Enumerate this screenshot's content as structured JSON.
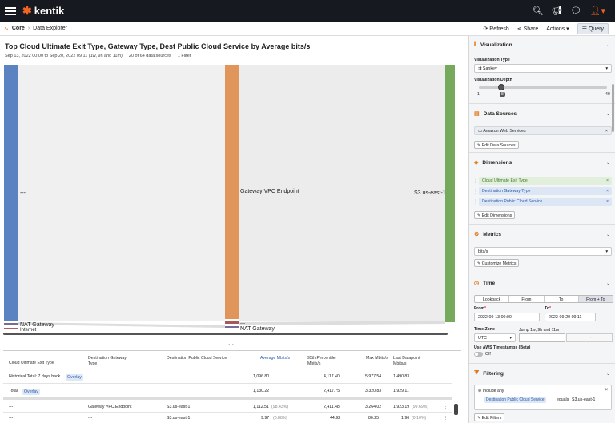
{
  "app": {
    "name": "kentik"
  },
  "breadcrumb": {
    "root": "Core",
    "page": "Data Explorer"
  },
  "actions": {
    "refresh": "Refresh",
    "share": "Share",
    "actions": "Actions",
    "query": "Query"
  },
  "chart": {
    "title": "Top Cloud Ultimate Exit Type, Gateway Type, Dest Public Cloud Service by Average bits/s",
    "range": "Sep 13, 2022 00:00 to Sep 20, 2022 09:11 (1w, 9h and 11m)",
    "sources": "20 of 64 data sources",
    "filters": "1 Filter",
    "nodes": {
      "col1_main": "---",
      "col1_a": "NAT Gateway",
      "col1_b": "Internet",
      "col2_main": "Gateway VPC Endpoint",
      "col2_a": "---",
      "col2_b": "NAT Gateway",
      "col3_main": "S3.us-east-1"
    }
  },
  "table": {
    "headers": [
      "Cloud Ultimate Exit Type",
      "Destination Gateway Type",
      "Destination Public Cloud Service",
      "Average Mbits/s",
      "95th Percentile Mbits/s",
      "Max Mbits/s",
      "Last Datapoint Mbits/s"
    ],
    "rows": [
      {
        "c1": "Historical Total: 7 days back",
        "tag": "Overlay",
        "avg": "1,096.80",
        "p95": "4,117.40",
        "max": "5,977.54",
        "last": "1,490.83"
      },
      {
        "c1": "Total",
        "tag": "Overlay",
        "avg": "1,130.22",
        "p95": "2,417.75",
        "max": "3,320.83",
        "last": "1,929.11"
      },
      {
        "c1": "---",
        "c2": "Gateway VPC Endpoint",
        "c3": "S3.us-east-1",
        "avg": "1,112.51",
        "avgpct": "(98.43%)",
        "p95": "2,411.48",
        "max": "3,264.02",
        "last": "1,923.19",
        "lastpct": "(99.69%)"
      },
      {
        "c1": "---",
        "c2": "---",
        "c3": "S3.us-east-1",
        "avg": "9.97",
        "avgpct": "(0.88%)",
        "p95": "44.92",
        "max": "86.25",
        "last": "1.96",
        "lastpct": "(0.10%)"
      }
    ]
  },
  "panel": {
    "visualization": {
      "title": "Visualization",
      "type_label": "Visualization Type",
      "type": "Sankey",
      "depth_label": "Visualization Depth",
      "min": "1",
      "val": "8",
      "max": "40"
    },
    "sources": {
      "title": "Data Sources",
      "item": "Amazon Web Services",
      "edit": "Edit Data Sources"
    },
    "dimensions": {
      "title": "Dimensions",
      "items": [
        "Cloud Ultimate Exit Type",
        "Destination Gateway Type",
        "Destination Public Cloud Service"
      ],
      "edit": "Edit Dimensions"
    },
    "metrics": {
      "title": "Metrics",
      "value": "bits/s",
      "customize": "Customize Metrics"
    },
    "time": {
      "title": "Time",
      "tabs": [
        "Lookback",
        "From",
        "To",
        "From + To"
      ],
      "from_label": "From",
      "from": "2022-09-13 00:00",
      "to_label": "To",
      "to": "2022-09-20 09:11",
      "tz_label": "Time Zone",
      "tz": "UTC",
      "jump": "Jump 1w, 9h and 11m",
      "aws_label": "Use AWS Timestamps (Beta)",
      "aws": "Off"
    },
    "filtering": {
      "title": "Filtering",
      "include": "Include any",
      "field": "Destination Public Cloud Service",
      "op": "equals",
      "value": "S3.us-east-1",
      "edit": "Edit Filters"
    }
  },
  "colors": {
    "blue": "#5b83c2",
    "orange": "#e0955a",
    "green": "#76a95b",
    "accent": "#f26522"
  }
}
